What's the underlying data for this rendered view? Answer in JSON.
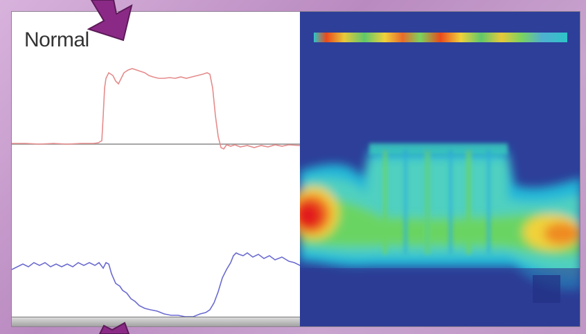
{
  "panel": {
    "title": "Normal"
  },
  "colors": {
    "upper_trace": "#e58b8b",
    "lower_trace": "#6a6ad0",
    "baseline": "#8a8a8a",
    "heatmap_background": "#2d3f99",
    "arrow": "#8b2a86"
  },
  "icons": [
    "down-arrow-icon",
    "up-arrow-icon"
  ]
}
